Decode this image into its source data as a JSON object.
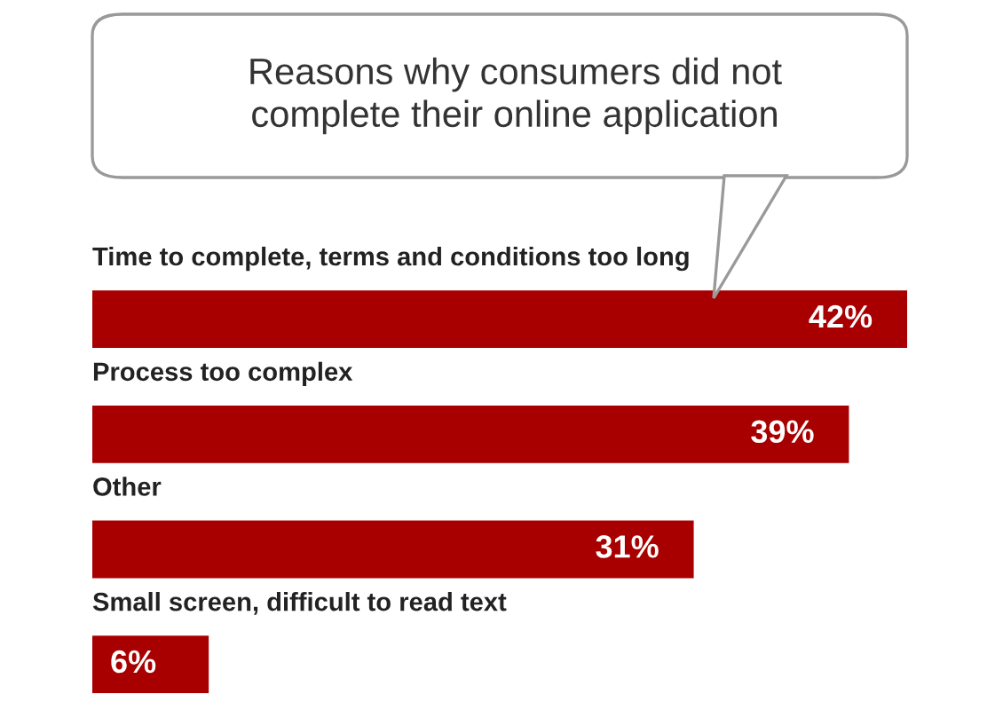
{
  "chart_data": {
    "type": "bar",
    "orientation": "horizontal",
    "title": "Reasons why consumers did not\ncomplete their online application",
    "categories": [
      "Time to complete, terms and conditions too long",
      "Process too complex",
      "Other",
      "Small screen, difficult to read text"
    ],
    "values": [
      42,
      39,
      31,
      6
    ],
    "color": "#a80000",
    "value_labels": [
      "42%",
      "39%",
      "31%",
      "6%"
    ]
  }
}
